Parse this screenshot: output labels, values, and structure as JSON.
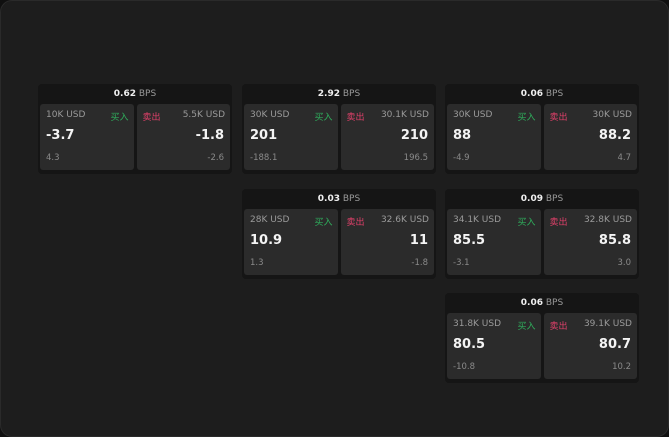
{
  "unit": "BPS",
  "buy_label": "买入",
  "sell_label": "卖出",
  "colors": {
    "buy": "#2fae5c",
    "sell": "#e0406a"
  },
  "widgets": [
    {
      "spread": "0.62",
      "bid": {
        "size": "10K USD",
        "price": "-3.7",
        "change": "4.3"
      },
      "ask": {
        "size": "5.5K USD",
        "price": "-1.8",
        "change": "-2.6"
      }
    },
    {
      "spread": "2.92",
      "bid": {
        "size": "30K USD",
        "price": "201",
        "change": "-188.1"
      },
      "ask": {
        "size": "30.1K USD",
        "price": "210",
        "change": "196.5"
      }
    },
    {
      "spread": "0.06",
      "bid": {
        "size": "30K USD",
        "price": "88",
        "change": "-4.9"
      },
      "ask": {
        "size": "30K USD",
        "price": "88.2",
        "change": "4.7"
      }
    },
    {
      "spread": "0.03",
      "bid": {
        "size": "28K USD",
        "price": "10.9",
        "change": "1.3"
      },
      "ask": {
        "size": "32.6K USD",
        "price": "11",
        "change": "-1.8"
      }
    },
    {
      "spread": "0.09",
      "bid": {
        "size": "34.1K USD",
        "price": "85.5",
        "change": "-3.1"
      },
      "ask": {
        "size": "32.8K USD",
        "price": "85.8",
        "change": "3.0"
      }
    },
    {
      "spread": "0.06",
      "bid": {
        "size": "31.8K USD",
        "price": "80.5",
        "change": "-10.8"
      },
      "ask": {
        "size": "39.1K USD",
        "price": "80.7",
        "change": "10.2"
      }
    }
  ]
}
